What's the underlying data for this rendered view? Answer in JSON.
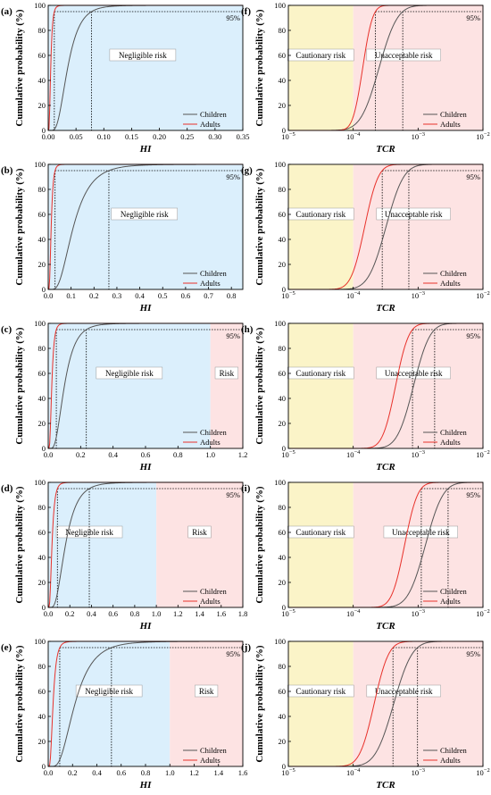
{
  "figure": {
    "y_axis_label": "Cumulative probability (%)",
    "y_ticks": [
      0,
      20,
      40,
      60,
      80,
      100
    ],
    "legend": [
      "Children",
      "Adults"
    ],
    "percentile_label": "95%",
    "colors": {
      "children": "#555555",
      "adults": "#e8312a",
      "negligible": "#dbeffc",
      "risk": "#fde3e3",
      "cautionary": "#fbf4c8"
    }
  },
  "chart_data": [
    {
      "id": "a",
      "label": "(a)",
      "type": "line",
      "xlabel": "HI",
      "xscale": "linear",
      "xlim": [
        0,
        0.35
      ],
      "xticks": [
        0.0,
        0.05,
        0.1,
        0.15,
        0.2,
        0.25,
        0.3,
        0.35
      ],
      "tick_decimals": 2,
      "ylim": [
        0,
        100
      ],
      "regions": [
        {
          "label": "Negligible risk",
          "from": 0,
          "to": 0.35,
          "color": "negligible",
          "text_x": 0.17
        }
      ],
      "series": [
        {
          "name": "Children",
          "curve": "lognormal",
          "median": 0.035,
          "p95": 0.078
        },
        {
          "name": "Adults",
          "curve": "lognormal",
          "median": 0.0045,
          "p95": 0.011
        }
      ]
    },
    {
      "id": "b",
      "label": "(b)",
      "type": "line",
      "xlabel": "HI",
      "xscale": "linear",
      "xlim": [
        0,
        0.85
      ],
      "xticks": [
        0.0,
        0.1,
        0.2,
        0.3,
        0.4,
        0.5,
        0.6,
        0.7,
        0.8
      ],
      "tick_decimals": 1,
      "ylim": [
        0,
        100
      ],
      "regions": [
        {
          "label": "Negligible risk",
          "from": 0,
          "to": 0.85,
          "color": "negligible",
          "text_x": 0.42
        }
      ],
      "series": [
        {
          "name": "Children",
          "curve": "lognormal",
          "median": 0.11,
          "p95": 0.265
        },
        {
          "name": "Adults",
          "curve": "lognormal",
          "median": 0.013,
          "p95": 0.03
        }
      ]
    },
    {
      "id": "c",
      "label": "(c)",
      "type": "line",
      "xlabel": "HI",
      "xscale": "linear",
      "xlim": [
        0,
        1.2
      ],
      "xticks": [
        0.0,
        0.2,
        0.4,
        0.6,
        0.8,
        1.0,
        1.2
      ],
      "tick_decimals": 1,
      "ylim": [
        0,
        100
      ],
      "regions": [
        {
          "label": "Negligible risk",
          "from": 0,
          "to": 1.0,
          "color": "negligible",
          "text_x": 0.5
        },
        {
          "label": "Risk",
          "from": 1.0,
          "to": 1.2,
          "color": "risk",
          "text_x": 1.1
        }
      ],
      "series": [
        {
          "name": "Children",
          "curve": "lognormal",
          "median": 0.1,
          "p95": 0.235
        },
        {
          "name": "Adults",
          "curve": "lognormal",
          "median": 0.022,
          "p95": 0.05
        }
      ]
    },
    {
      "id": "d",
      "label": "(d)",
      "type": "line",
      "xlabel": "HI",
      "xscale": "linear",
      "xlim": [
        0,
        1.8
      ],
      "xticks": [
        0.0,
        0.2,
        0.4,
        0.6,
        0.8,
        1.0,
        1.2,
        1.4,
        1.6,
        1.8
      ],
      "tick_decimals": 1,
      "ylim": [
        0,
        100
      ],
      "regions": [
        {
          "label": "Negligible risk",
          "from": 0,
          "to": 1.0,
          "color": "negligible",
          "text_x": 0.38
        },
        {
          "label": "Risk",
          "from": 1.0,
          "to": 1.8,
          "color": "risk",
          "text_x": 1.4
        }
      ],
      "series": [
        {
          "name": "Children",
          "curve": "lognormal",
          "median": 0.16,
          "p95": 0.38
        },
        {
          "name": "Adults",
          "curve": "lognormal",
          "median": 0.035,
          "p95": 0.085
        }
      ]
    },
    {
      "id": "e",
      "label": "(e)",
      "type": "line",
      "xlabel": "HI",
      "xscale": "linear",
      "xlim": [
        0,
        1.6
      ],
      "xticks": [
        0.0,
        0.2,
        0.4,
        0.6,
        0.8,
        1.0,
        1.2,
        1.4,
        1.6
      ],
      "tick_decimals": 1,
      "ylim": [
        0,
        100
      ],
      "regions": [
        {
          "label": "Negligible risk",
          "from": 0,
          "to": 1.0,
          "color": "negligible",
          "text_x": 0.5
        },
        {
          "label": "Risk",
          "from": 1.0,
          "to": 1.6,
          "color": "risk",
          "text_x": 1.3
        }
      ],
      "series": [
        {
          "name": "Children",
          "curve": "lognormal",
          "median": 0.22,
          "p95": 0.52
        },
        {
          "name": "Adults",
          "curve": "lognormal",
          "median": 0.04,
          "p95": 0.095
        }
      ]
    },
    {
      "id": "f",
      "label": "(f)",
      "type": "line",
      "xlabel": "TCR",
      "xscale": "log",
      "xlim": [
        1e-05,
        0.01
      ],
      "xticks_exp": [
        -5,
        -4,
        -3,
        -2
      ],
      "ylim": [
        0,
        100
      ],
      "regions": [
        {
          "label": "Cautionary risk",
          "from": 1e-05,
          "to": 0.0001,
          "color": "cautionary",
          "text_x": 3.16e-05
        },
        {
          "label": "Unacceptable risk",
          "from": 0.0001,
          "to": 0.01,
          "color": "risk",
          "text_x": 0.0006
        }
      ],
      "series": [
        {
          "name": "Children",
          "curve": "lognormal",
          "median": 0.00025,
          "p95": 0.00058
        },
        {
          "name": "Adults",
          "curve": "lognormal",
          "median": 0.00014,
          "p95": 0.00022
        }
      ]
    },
    {
      "id": "g",
      "label": "(g)",
      "type": "line",
      "xlabel": "TCR",
      "xscale": "log",
      "xlim": [
        1e-05,
        0.01
      ],
      "xticks_exp": [
        -5,
        -4,
        -3,
        -2
      ],
      "ylim": [
        0,
        100
      ],
      "regions": [
        {
          "label": "Cautionary risk",
          "from": 1e-05,
          "to": 0.0001,
          "color": "cautionary",
          "text_x": 3.16e-05
        },
        {
          "label": "Unacceptable risk",
          "from": 0.0001,
          "to": 0.01,
          "color": "risk",
          "text_x": 0.00085
        }
      ],
      "series": [
        {
          "name": "Children",
          "curve": "lognormal",
          "median": 0.00032,
          "p95": 0.00072
        },
        {
          "name": "Adults",
          "curve": "lognormal",
          "median": 0.00015,
          "p95": 0.00028
        }
      ]
    },
    {
      "id": "h",
      "label": "(h)",
      "type": "line",
      "xlabel": "TCR",
      "xscale": "log",
      "xlim": [
        1e-05,
        0.01
      ],
      "xticks_exp": [
        -5,
        -4,
        -3,
        -2
      ],
      "ylim": [
        0,
        100
      ],
      "regions": [
        {
          "label": "Cautionary risk",
          "from": 1e-05,
          "to": 0.0001,
          "color": "cautionary",
          "text_x": 3.16e-05
        },
        {
          "label": "Unacceptable risk",
          "from": 0.0001,
          "to": 0.01,
          "color": "risk",
          "text_x": 0.00085
        }
      ],
      "series": [
        {
          "name": "Children",
          "curve": "lognormal",
          "median": 0.00085,
          "p95": 0.0018
        },
        {
          "name": "Adults",
          "curve": "lognormal",
          "median": 0.00045,
          "p95": 0.00082
        }
      ]
    },
    {
      "id": "i",
      "label": "(i)",
      "type": "line",
      "xlabel": "TCR",
      "xscale": "log",
      "xlim": [
        1e-05,
        0.01
      ],
      "xticks_exp": [
        -5,
        -4,
        -3,
        -2
      ],
      "ylim": [
        0,
        100
      ],
      "regions": [
        {
          "label": "Cautionary risk",
          "from": 1e-05,
          "to": 0.0001,
          "color": "cautionary",
          "text_x": 3.16e-05
        },
        {
          "label": "Unacceptable risk",
          "from": 0.0001,
          "to": 0.01,
          "color": "risk",
          "text_x": 0.0011
        }
      ],
      "series": [
        {
          "name": "Children",
          "curve": "lognormal",
          "median": 0.0013,
          "p95": 0.0029
        },
        {
          "name": "Adults",
          "curve": "lognormal",
          "median": 0.00062,
          "p95": 0.00112
        }
      ]
    },
    {
      "id": "j",
      "label": "(j)",
      "type": "line",
      "xlabel": "TCR",
      "xscale": "log",
      "xlim": [
        1e-05,
        0.01
      ],
      "xticks_exp": [
        -5,
        -4,
        -3,
        -2
      ],
      "ylim": [
        0,
        100
      ],
      "regions": [
        {
          "label": "Cautionary risk",
          "from": 1e-05,
          "to": 0.0001,
          "color": "cautionary",
          "text_x": 3.16e-05
        },
        {
          "label": "Unacceptable risk",
          "from": 0.0001,
          "to": 0.01,
          "color": "risk",
          "text_x": 0.0006
        }
      ],
      "series": [
        {
          "name": "Children",
          "curve": "lognormal",
          "median": 0.00042,
          "p95": 0.00098
        },
        {
          "name": "Adults",
          "curve": "lognormal",
          "median": 0.00021,
          "p95": 0.00041
        }
      ]
    }
  ]
}
